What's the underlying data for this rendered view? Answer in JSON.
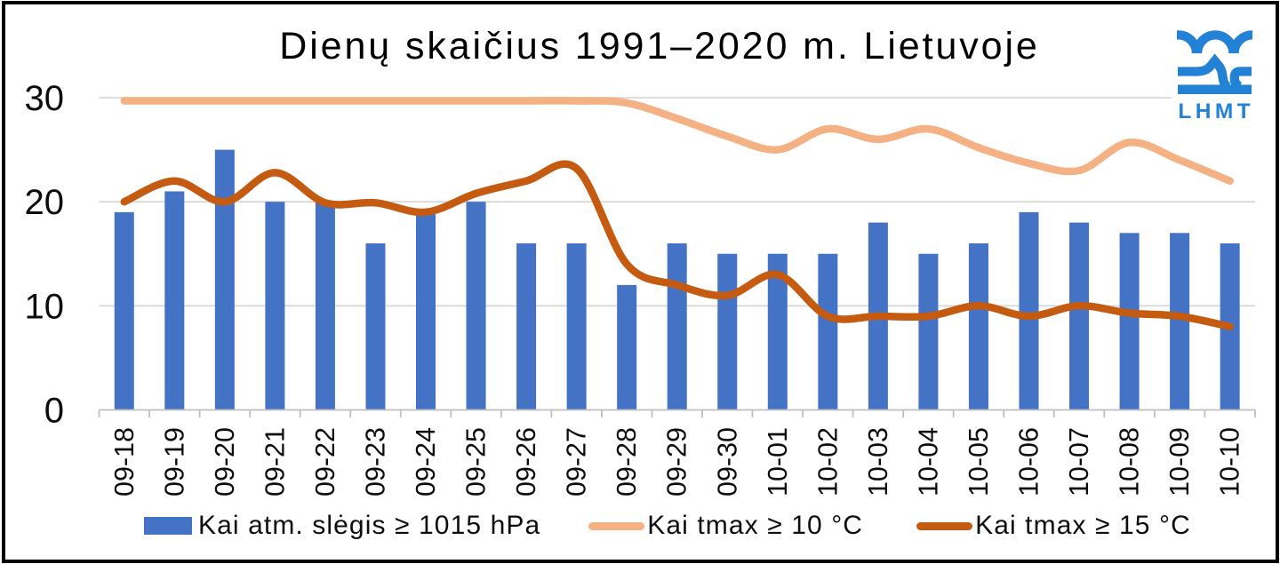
{
  "chart_data": {
    "type": "bar+line",
    "title": "Dienų skaičius 1991–2020 m. Lietuvoje",
    "categories": [
      "09-18",
      "09-19",
      "09-20",
      "09-21",
      "09-22",
      "09-23",
      "09-24",
      "09-25",
      "09-26",
      "09-27",
      "09-28",
      "09-29",
      "09-30",
      "10-01",
      "10-02",
      "10-03",
      "10-04",
      "10-05",
      "10-06",
      "10-07",
      "10-08",
      "10-09",
      "10-10"
    ],
    "series": [
      {
        "name": "Kai atm. slėgis ≥ 1015 hPa",
        "type": "bar",
        "color": "#4472C4",
        "values": [
          19,
          21,
          25,
          20,
          20,
          16,
          19,
          20,
          16,
          16,
          12,
          16,
          15,
          15,
          15,
          18,
          15,
          16,
          19,
          18,
          17,
          17,
          16
        ]
      },
      {
        "name": "Kai tmax ≥ 10 °C",
        "type": "line",
        "color": "#F4B183",
        "values": [
          29.7,
          29.7,
          29.7,
          29.7,
          29.7,
          29.7,
          29.7,
          29.7,
          29.7,
          29.7,
          29.5,
          28,
          26.3,
          25,
          27,
          26,
          27,
          25.2,
          23.7,
          23,
          25.7,
          24,
          22
        ]
      },
      {
        "name": "Kai tmax ≥ 15 °C",
        "type": "line",
        "color": "#C55A11",
        "values": [
          20,
          22,
          20,
          22.8,
          19.9,
          19.9,
          19,
          20.8,
          22,
          23.2,
          14,
          12,
          11,
          13,
          9,
          9,
          9,
          10,
          9,
          10,
          9.3,
          9,
          8
        ]
      }
    ],
    "ylim": [
      0,
      30
    ],
    "yticks": [
      0,
      10,
      20,
      30
    ],
    "grid": true,
    "legend_position": "bottom",
    "gridline_color": "#D9D9D9",
    "axis_color": "#BFBFBF",
    "label_color": "#0d0d0d"
  },
  "logo": {
    "text": "LHMT",
    "color": "#2382D6"
  }
}
